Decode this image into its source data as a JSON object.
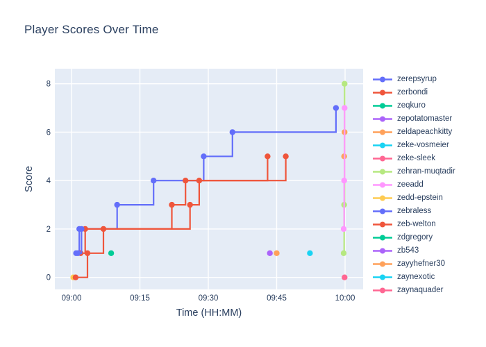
{
  "title": "Player Scores Over Time",
  "colors": {
    "paper_bg": "#ffffff",
    "plot_bg": "#e5ecf6",
    "grid": "#ffffff",
    "text": "#2a3f5f"
  },
  "axes": {
    "x": {
      "title": "Time (HH:MM)",
      "ticks": [
        "09:00",
        "09:15",
        "09:30",
        "09:45",
        "10:00"
      ]
    },
    "y": {
      "title": "Score",
      "ticks": [
        0,
        2,
        4,
        6,
        8
      ]
    }
  },
  "chart_data": {
    "type": "line",
    "line_shape": "hv",
    "title": "Player Scores Over Time",
    "xlabel": "Time (HH:MM)",
    "ylabel": "Score",
    "x_tick_labels": [
      "09:00",
      "09:15",
      "09:30",
      "09:45",
      "10:00"
    ],
    "y_tick_values": [
      0,
      2,
      4,
      6,
      8
    ],
    "ylim": [
      -0.5,
      8.55
    ],
    "xlim_minutes_after_0900": [
      -3.7,
      64.0
    ],
    "grid": true,
    "legend_position": "right",
    "series": [
      {
        "name": "zerepsyrup",
        "color": "#636EFA",
        "points": [
          [
            "09:01",
            1
          ],
          [
            "09:01.7",
            2
          ],
          [
            "09:10",
            3
          ],
          [
            "09:18",
            4
          ],
          [
            "09:29",
            5
          ],
          [
            "09:35.3",
            6
          ],
          [
            "09:58",
            7
          ]
        ]
      },
      {
        "name": "zerbondi",
        "color": "#EF553B",
        "points": [
          [
            "09:02",
            1
          ],
          [
            "09:03",
            2
          ],
          [
            "09:22",
            3
          ],
          [
            "09:25",
            4
          ],
          [
            "09:43",
            5
          ]
        ]
      },
      {
        "name": "zeqkuro",
        "color": "#00CC96",
        "points": [
          [
            "09:08.7",
            1
          ]
        ]
      },
      {
        "name": "zepotatomaster",
        "color": "#AB63FA",
        "points": [
          [
            "09:43.5",
            1
          ]
        ]
      },
      {
        "name": "zeldapeachkitty",
        "color": "#FFA15A",
        "points": [
          [
            "09:59.8",
            5
          ],
          [
            "09:59.9",
            6
          ]
        ]
      },
      {
        "name": "zeke-vosmeier",
        "color": "#19D3F3",
        "points": []
      },
      {
        "name": "zeke-sleek",
        "color": "#FF6692",
        "points": []
      },
      {
        "name": "zehran-muqtadir",
        "color": "#B6E880",
        "points": [
          [
            "09:59.7",
            1
          ],
          [
            "09:59.8",
            3
          ],
          [
            "09:59.9",
            8
          ]
        ]
      },
      {
        "name": "zeeadd",
        "color": "#FF97FF",
        "points": [
          [
            "09:59.7",
            2
          ],
          [
            "09:59.8",
            4
          ],
          [
            "09:59.9",
            7
          ]
        ]
      },
      {
        "name": "zedd-epstein",
        "color": "#FECB52",
        "points": [
          [
            "09:00.4",
            0
          ]
        ]
      },
      {
        "name": "zebraless",
        "color": "#636EFA",
        "points": [
          [
            "09:01.4",
            1
          ],
          [
            "09:02.2",
            2
          ]
        ]
      },
      {
        "name": "zeb-welton",
        "color": "#EF553B",
        "points": [
          [
            "09:00.9",
            0
          ],
          [
            "09:03.5",
            1
          ],
          [
            "09:07",
            2
          ],
          [
            "09:26",
            3
          ],
          [
            "09:28",
            4
          ],
          [
            "09:47",
            5
          ]
        ]
      },
      {
        "name": "zdgregory",
        "color": "#00CC96",
        "points": []
      },
      {
        "name": "zb543",
        "color": "#AB63FA",
        "points": []
      },
      {
        "name": "zayyhefner30",
        "color": "#FFA15A",
        "points": [
          [
            "09:45",
            1
          ]
        ]
      },
      {
        "name": "zaynexotic",
        "color": "#19D3F3",
        "points": [
          [
            "09:52.3",
            1
          ]
        ]
      },
      {
        "name": "zaynaquader",
        "color": "#FF6692",
        "points": [
          [
            "09:59.9",
            0
          ]
        ]
      }
    ]
  }
}
